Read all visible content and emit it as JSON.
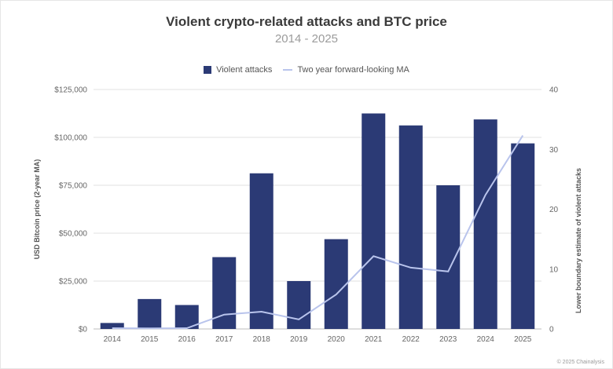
{
  "chart_data": {
    "type": "bar",
    "title": "Violent crypto-related attacks and BTC price",
    "subtitle": "2014 - 2025",
    "categories": [
      "2014",
      "2015",
      "2016",
      "2017",
      "2018",
      "2019",
      "2020",
      "2021",
      "2022",
      "2023",
      "2024",
      "2025"
    ],
    "series": [
      {
        "name": "Violent attacks",
        "type": "bar",
        "axis": "right",
        "color": "#2b3a75",
        "values": [
          1,
          5,
          4,
          12,
          26,
          8,
          15,
          36,
          34,
          24,
          35,
          31
        ]
      },
      {
        "name": "Two year forward-looking MA",
        "type": "line",
        "axis": "left",
        "color": "#b9c4ec",
        "values": [
          400,
          300,
          400,
          7500,
          9000,
          5000,
          18000,
          38000,
          32000,
          30000,
          70000,
          101000
        ]
      }
    ],
    "ylabel_left": "USD Bitcoin price (2-year MA)",
    "ylabel_right": "Lower boundary estimate of violent attacks",
    "ylim_left": [
      0,
      125000
    ],
    "ylim_right": [
      0,
      40
    ],
    "yticks_left": [
      "$0",
      "$25,000",
      "$50,000",
      "$75,000",
      "$100,000",
      "$125,000"
    ],
    "yticks_right": [
      "0",
      "10",
      "20",
      "30",
      "40"
    ],
    "grid": true,
    "legend_position": "top-center"
  },
  "footer": {
    "credit": "© 2025 Chainalysis"
  }
}
